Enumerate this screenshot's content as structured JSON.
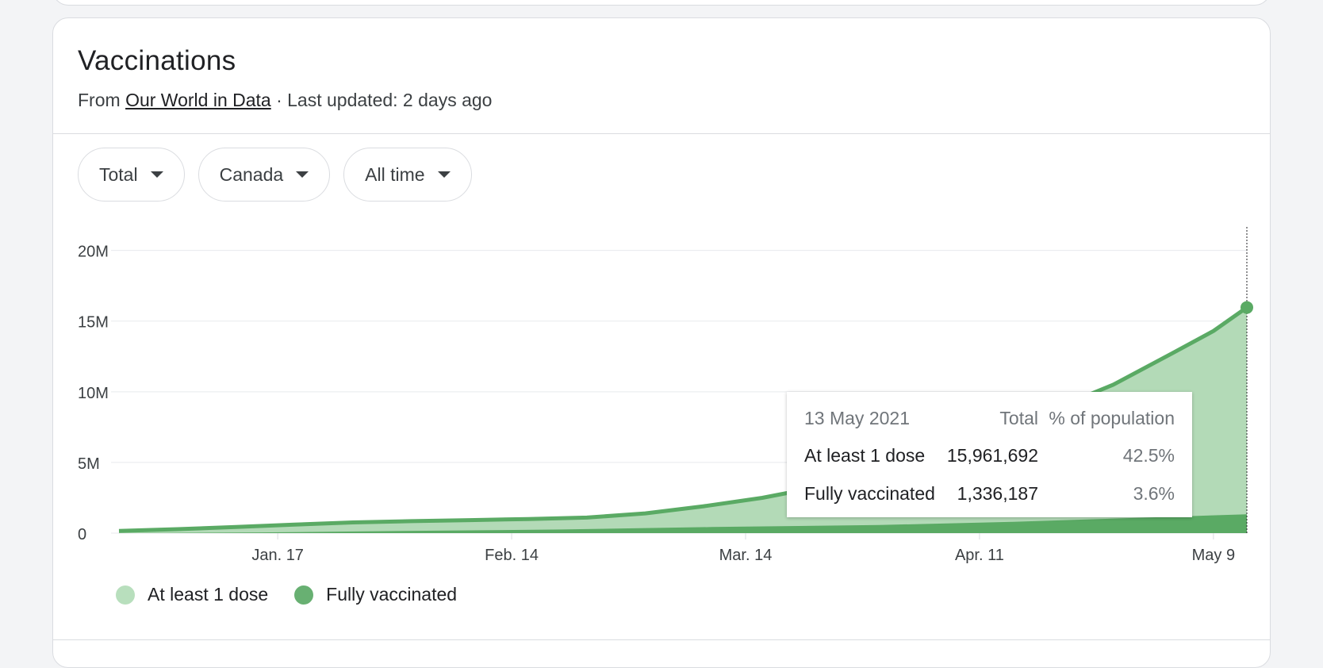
{
  "card": {
    "title": "Vaccinations",
    "source_prefix": "From",
    "source_link": "Our World in Data",
    "source_suffix": "· Last updated: 2 days ago"
  },
  "filters": [
    {
      "label": "Total"
    },
    {
      "label": "Canada"
    },
    {
      "label": "All time"
    }
  ],
  "colors": {
    "dose1": "#b3dab7",
    "full": "#5aaa64",
    "line": "#5aaa64",
    "legend_dose1": "#b8dfbd",
    "legend_full": "#68b072"
  },
  "tooltip": {
    "date": "13 May 2021",
    "col_total": "Total",
    "col_pct": "% of population",
    "rows": [
      {
        "label": "At least 1 dose",
        "total": "15,961,692",
        "pct": "42.5%"
      },
      {
        "label": "Fully vaccinated",
        "total": "1,336,187",
        "pct": "3.6%"
      }
    ]
  },
  "chart_data": {
    "type": "area",
    "y_ticks": [
      "0",
      "5M",
      "10M",
      "15M",
      "20M"
    ],
    "y_values": [
      0,
      5000000,
      10000000,
      15000000,
      20000000
    ],
    "ylim": [
      0,
      22000000
    ],
    "x_ticks": [
      "Jan. 17",
      "Feb. 14",
      "Mar. 14",
      "Apr. 11",
      "May 9"
    ],
    "x_tick_dates": [
      "2021-01-17",
      "2021-02-14",
      "2021-03-14",
      "2021-04-11",
      "2021-05-09"
    ],
    "xlim": [
      "2020-12-29",
      "2021-05-13"
    ],
    "grid": true,
    "legend_position": "bottom-left",
    "series": [
      {
        "name": "At least 1 dose",
        "points": [
          [
            "2020-12-29",
            150000
          ],
          [
            "2021-01-05",
            280000
          ],
          [
            "2021-01-12",
            430000
          ],
          [
            "2021-01-19",
            600000
          ],
          [
            "2021-01-26",
            760000
          ],
          [
            "2021-02-02",
            850000
          ],
          [
            "2021-02-09",
            920000
          ],
          [
            "2021-02-16",
            1000000
          ],
          [
            "2021-02-23",
            1100000
          ],
          [
            "2021-03-02",
            1400000
          ],
          [
            "2021-03-09",
            1900000
          ],
          [
            "2021-03-16",
            2500000
          ],
          [
            "2021-03-23",
            3300000
          ],
          [
            "2021-03-30",
            4300000
          ],
          [
            "2021-04-06",
            5500000
          ],
          [
            "2021-04-13",
            7000000
          ],
          [
            "2021-04-20",
            8800000
          ],
          [
            "2021-04-27",
            10500000
          ],
          [
            "2021-05-04",
            12700000
          ],
          [
            "2021-05-09",
            14300000
          ],
          [
            "2021-05-13",
            15961692
          ]
        ]
      },
      {
        "name": "Fully vaccinated",
        "points": [
          [
            "2020-12-29",
            0
          ],
          [
            "2021-01-15",
            50000
          ],
          [
            "2021-02-01",
            150000
          ],
          [
            "2021-02-20",
            260000
          ],
          [
            "2021-03-10",
            430000
          ],
          [
            "2021-03-30",
            570000
          ],
          [
            "2021-04-15",
            800000
          ],
          [
            "2021-05-01",
            1100000
          ],
          [
            "2021-05-13",
            1336187
          ]
        ]
      }
    ]
  },
  "legend": [
    {
      "label": "At least 1 dose"
    },
    {
      "label": "Fully vaccinated"
    }
  ]
}
